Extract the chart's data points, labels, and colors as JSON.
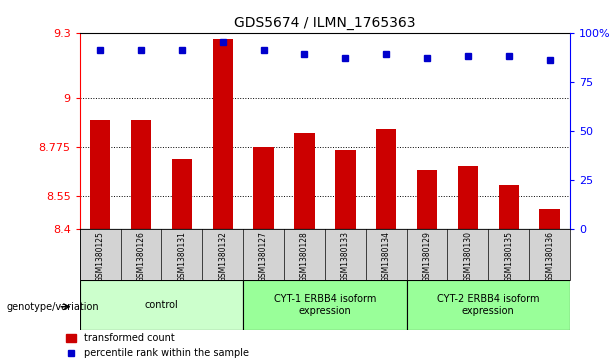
{
  "title": "GDS5674 / ILMN_1765363",
  "samples": [
    "GSM1380125",
    "GSM1380126",
    "GSM1380131",
    "GSM1380132",
    "GSM1380127",
    "GSM1380128",
    "GSM1380133",
    "GSM1380134",
    "GSM1380129",
    "GSM1380130",
    "GSM1380135",
    "GSM1380136"
  ],
  "bar_values": [
    8.9,
    8.9,
    8.72,
    9.27,
    8.775,
    8.84,
    8.76,
    8.86,
    8.67,
    8.69,
    8.6,
    8.49
  ],
  "dot_values": [
    91,
    91,
    91,
    95,
    91,
    89,
    87,
    89,
    87,
    88,
    88,
    86
  ],
  "ylim_left": [
    8.4,
    9.3
  ],
  "ylim_right": [
    0,
    100
  ],
  "yticks_left": [
    8.4,
    8.55,
    8.775,
    9.0,
    9.3
  ],
  "ytick_labels_left": [
    "8.4",
    "8.55",
    "8.775",
    "9",
    "9.3"
  ],
  "yticks_right": [
    0,
    25,
    50,
    75,
    100
  ],
  "ytick_labels_right": [
    "0",
    "25",
    "50",
    "75",
    "100%"
  ],
  "bar_color": "#cc0000",
  "dot_color": "#0000cc",
  "bar_bottom": 8.4,
  "groups": [
    {
      "label": "control",
      "start": 0,
      "end": 3,
      "color": "#ccffcc"
    },
    {
      "label": "CYT-1 ERBB4 isoform\nexpression",
      "start": 4,
      "end": 7,
      "color": "#99ff99"
    },
    {
      "label": "CYT-2 ERBB4 isoform\nexpression",
      "start": 8,
      "end": 11,
      "color": "#99ff99"
    }
  ],
  "xlabel_area_color": "#d3d3d3",
  "genotype_label": "genotype/variation",
  "background_color": "#ffffff",
  "bar_width": 0.5
}
